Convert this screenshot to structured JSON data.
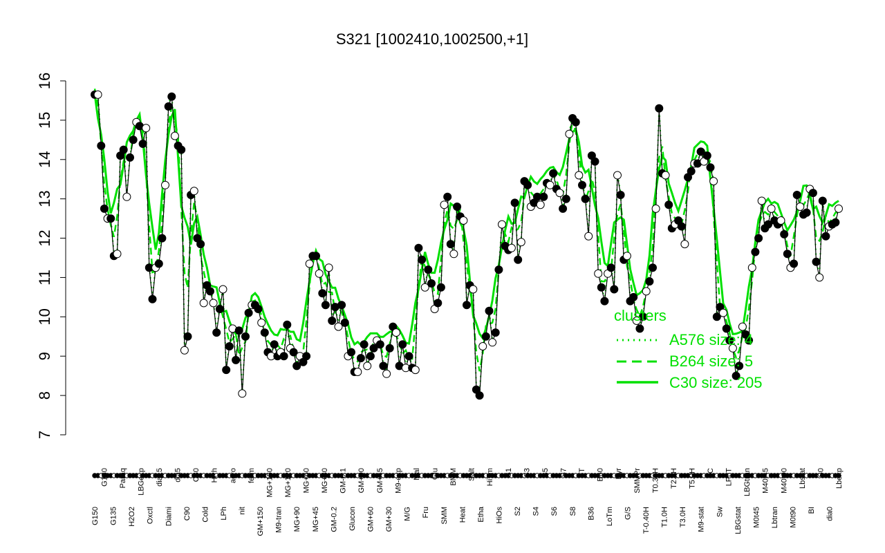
{
  "chart_data": {
    "type": "line",
    "title": "S321 [1002410,1002500,+1]",
    "xlabel": "",
    "ylabel": "",
    "ylim": [
      7,
      16
    ],
    "y_ticks": [
      "7",
      "8",
      "9",
      "10",
      "11",
      "12",
      "13",
      "14",
      "15",
      "16"
    ],
    "x_tick_labels": [
      "G150",
      "G180",
      "G135",
      "Paraq",
      "H2O2",
      "LBGexp",
      "Oxctl",
      "dia15",
      "Diami",
      "dia5",
      "C90",
      "C30",
      "Cold",
      "HPh",
      "LPh",
      "aero",
      "nit",
      "ferm",
      "GM+150",
      "MG+150",
      "M9-tran",
      "MG+120",
      "MG+90",
      "MG+60",
      "MG+45",
      "MG+30",
      "GM-0.2",
      "GM-0.1",
      "Glucon",
      "GM+90",
      "GM+60",
      "GM+45",
      "GM+30",
      "M9-exp",
      "M/G",
      "Mal",
      "Fru",
      "Glu",
      "SMM",
      "BMM",
      "Heat",
      "Salt",
      "Etha",
      "HiTm",
      "HiOs",
      "S1",
      "S2",
      "S3",
      "S4",
      "S5",
      "S6",
      "S7",
      "S8",
      "BT",
      "B36",
      "B60",
      "LoTm",
      "Pyr",
      "G/S",
      "SMMPr",
      "T-0.40H",
      "T0.30H",
      "T1.0H",
      "T2.0H",
      "T3.0H",
      "T5.0H",
      "M9-stat",
      "BC",
      "Sw",
      "LPhT",
      "LBGstat",
      "LBGtran",
      "M0t45",
      "M40t45",
      "Lbtran",
      "M40t90",
      "M0t90",
      "Lbstat",
      "BI",
      "S0",
      "dia0",
      "Lbexp"
    ],
    "legend": {
      "title": "clusters",
      "placement": "bottom-right",
      "entries": [
        {
          "label": "A576 size: 4",
          "style": "dotted"
        },
        {
          "label": "B264 size: 5",
          "style": "dashed"
        },
        {
          "label": "C30 size: 205",
          "style": "solid"
        }
      ]
    },
    "colors": {
      "series_line": "#000000",
      "cluster": "#00e000",
      "axis": "#000000"
    },
    "series": [
      {
        "name": "S321",
        "values": [
          15.65,
          15.65,
          14.35,
          12.75,
          12.5,
          12.5,
          11.55,
          11.6,
          14.1,
          14.25,
          13.05,
          14.05,
          14.5,
          14.95,
          14.85,
          14.4,
          14.8,
          11.25,
          10.45,
          11.25,
          11.35,
          12.0,
          13.35,
          15.35,
          15.6,
          14.6,
          14.35,
          14.25,
          9.15,
          9.5,
          13.1,
          13.2,
          12.0,
          11.85,
          10.35,
          10.8,
          10.65,
          10.35,
          9.6,
          10.2,
          10.7,
          8.65,
          9.25,
          9.7,
          8.9,
          9.65,
          8.05,
          9.5,
          10.1,
          10.3,
          10.3,
          10.2,
          9.85,
          9.6,
          9.1,
          9.0,
          9.3,
          9.0,
          9.1,
          9.0,
          9.8,
          9.2,
          9.1,
          8.75,
          9.0,
          8.85,
          9.0,
          11.35,
          11.55,
          11.55,
          11.1,
          10.6,
          10.3,
          11.25,
          9.9,
          10.25,
          9.75,
          10.3,
          9.85,
          9.0,
          9.1,
          8.6,
          8.6,
          8.95,
          9.3,
          8.75,
          9.0,
          9.2,
          9.4,
          9.3,
          8.75,
          8.55,
          9.2,
          9.75,
          9.6,
          8.75,
          9.3,
          8.7,
          9.0,
          8.7,
          8.65,
          11.75,
          11.45,
          10.75,
          11.2,
          10.85,
          10.2,
          10.35,
          10.75,
          12.85,
          13.05,
          11.85,
          11.6,
          12.8,
          12.55,
          12.45,
          10.3,
          10.8,
          10.7,
          8.15,
          8.0,
          9.25,
          9.5,
          10.15,
          9.35,
          9.6,
          11.2,
          12.35,
          11.8,
          11.7,
          11.75,
          12.9,
          11.45,
          11.9,
          13.45,
          13.35,
          12.8,
          12.9,
          13.05,
          12.85,
          13.05,
          13.4,
          13.35,
          13.65,
          13.25,
          13.15,
          12.75,
          13.0,
          14.65,
          15.05,
          14.95,
          13.6,
          13.35,
          13.0,
          12.05,
          14.1,
          13.95,
          11.1,
          10.75,
          10.4,
          11.1,
          11.25,
          10.7,
          13.6,
          13.1,
          11.45,
          11.55,
          10.4,
          10.5,
          9.9,
          9.7,
          10.0,
          10.65,
          10.9,
          11.25,
          12.75,
          15.3,
          13.65,
          13.6,
          12.85,
          12.25,
          12.35,
          12.45,
          12.3,
          11.85,
          13.55,
          13.7,
          13.9,
          13.9,
          14.2,
          13.95,
          14.1,
          13.8,
          13.45,
          10.0,
          10.25,
          10.1,
          9.7,
          9.4,
          9.2,
          8.5,
          8.75,
          9.75,
          9.55,
          9.4,
          11.25,
          11.65,
          12.0,
          12.95,
          12.25,
          12.35,
          12.75,
          12.45,
          12.35,
          12.45,
          12.1,
          11.6,
          11.25,
          11.35,
          13.1,
          12.8,
          12.6,
          12.65,
          13.25,
          13.15,
          11.4,
          11.0,
          12.95,
          12.05,
          12.3,
          12.35,
          12.4,
          12.75
        ]
      }
    ]
  }
}
